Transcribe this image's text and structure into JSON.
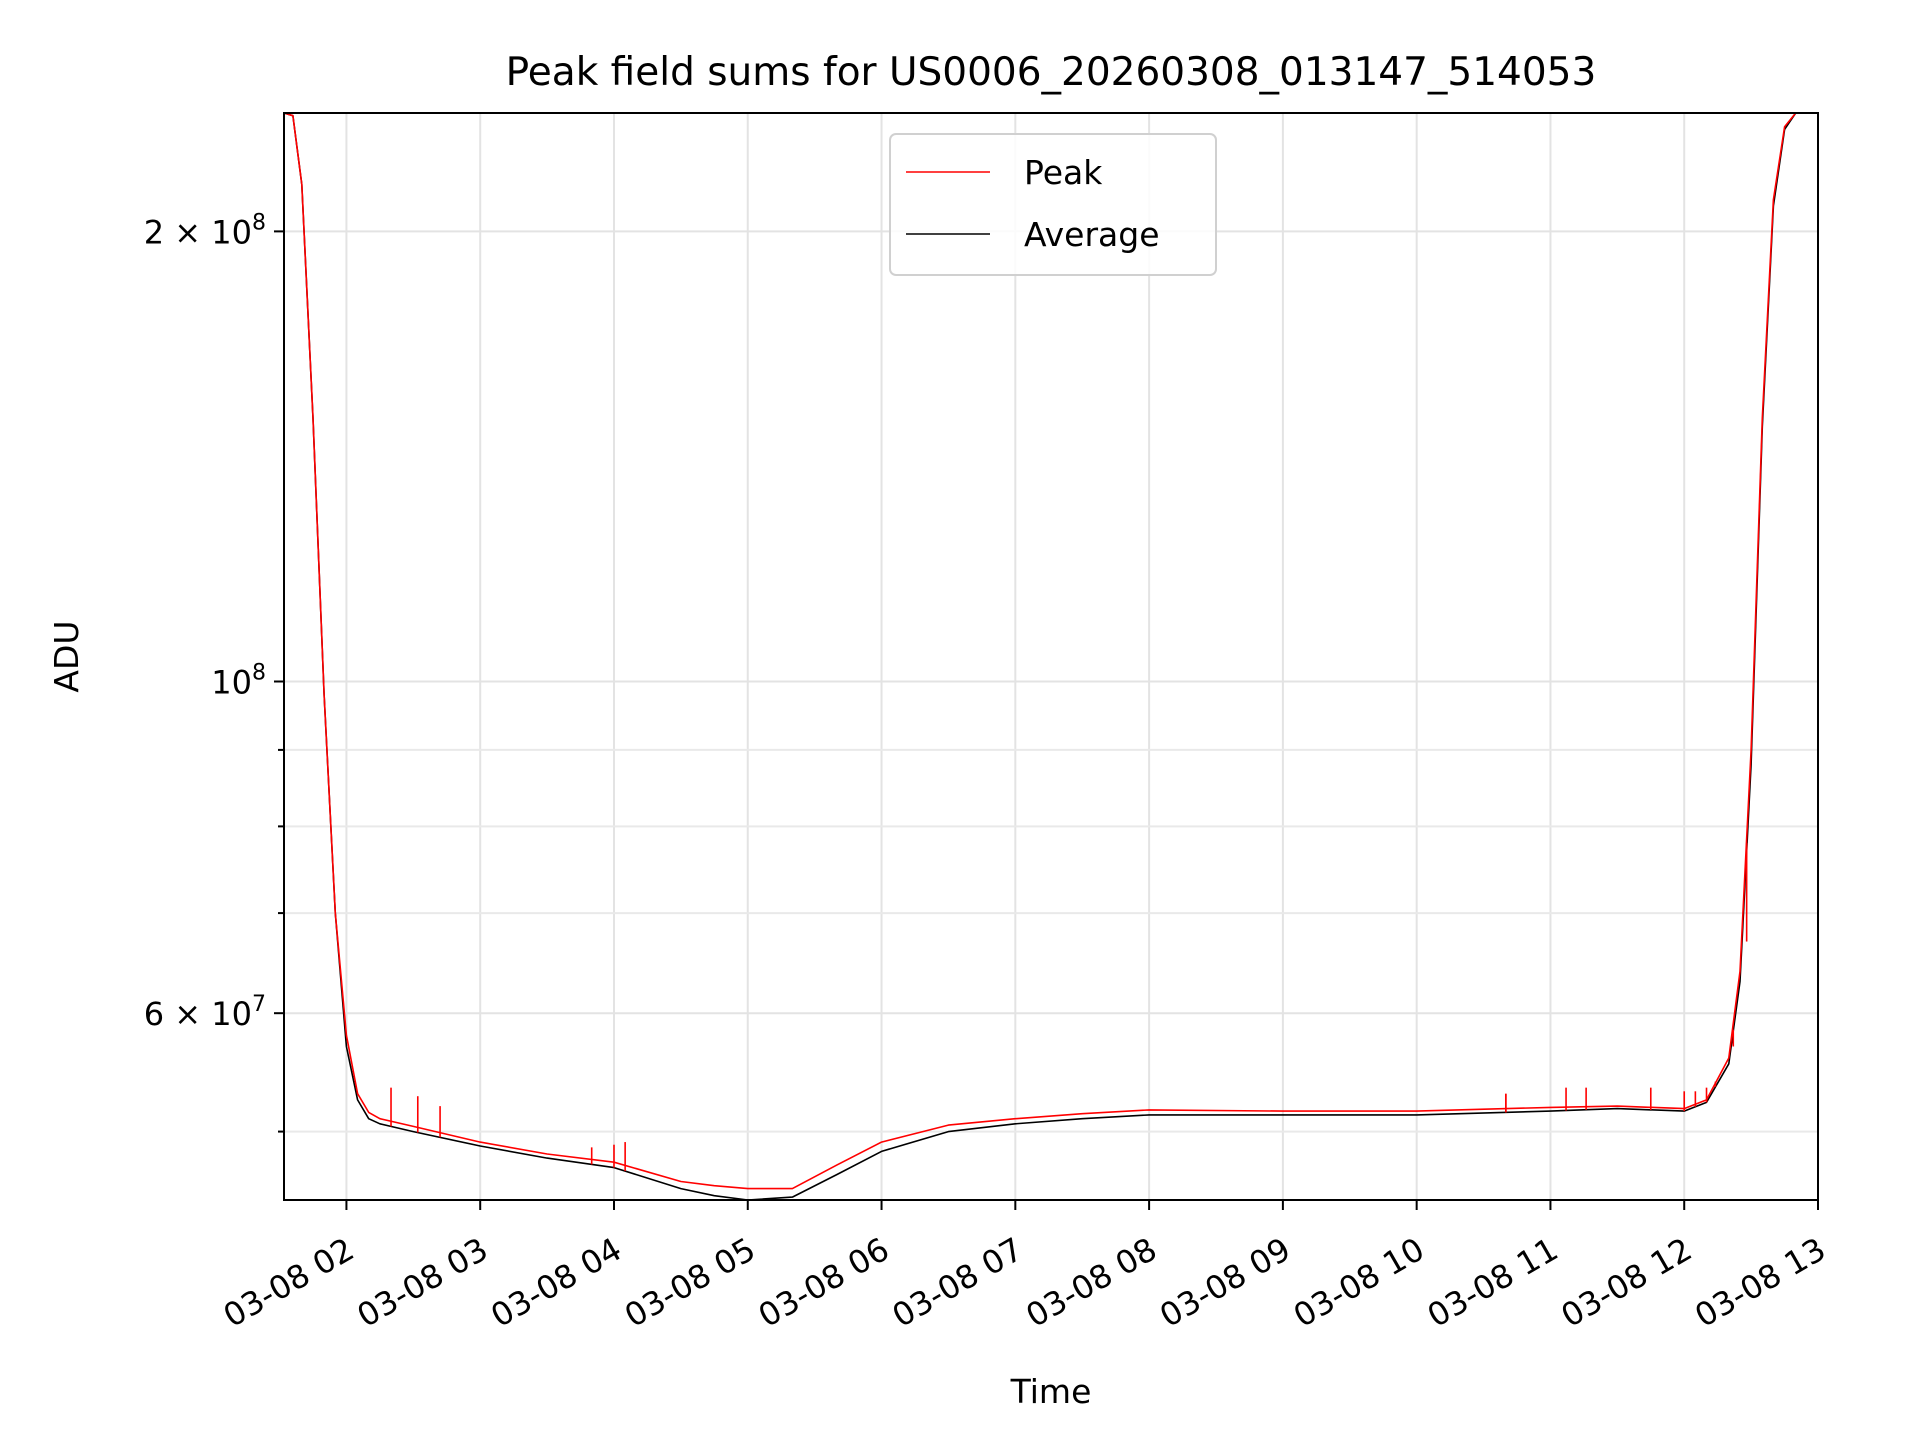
{
  "chart_data": {
    "type": "line",
    "title": "Peak field sums for US0006_20260308_013147_514053",
    "xlabel": "Time",
    "ylabel": "ADU",
    "yscale": "log",
    "ylim": [
      45000000,
      240000000
    ],
    "xlim": [
      "2026-03-08 01:32",
      "2026-03-08 13:00"
    ],
    "x_ticks": [
      "03-08 02",
      "03-08 03",
      "03-08 04",
      "03-08 05",
      "03-08 06",
      "03-08 07",
      "03-08 08",
      "03-08 09",
      "03-08 10",
      "03-08 11",
      "03-08 12",
      "03-08 13"
    ],
    "y_ticks": [
      {
        "value": 200000000,
        "mantissa": "2",
        "exponent": "8"
      },
      {
        "value": 100000000,
        "mantissa": "",
        "exponent": "8"
      },
      {
        "value": 60000000,
        "mantissa": "6",
        "exponent": "7"
      }
    ],
    "y_minor_ticks": [
      50000000,
      70000000,
      80000000,
      90000000
    ],
    "grid": true,
    "legend_position": "top-center",
    "x": [
      "2026-03-08 01:32",
      "2026-03-08 01:36",
      "2026-03-08 01:40",
      "2026-03-08 01:45",
      "2026-03-08 01:50",
      "2026-03-08 01:55",
      "2026-03-08 02:00",
      "2026-03-08 02:05",
      "2026-03-08 02:10",
      "2026-03-08 02:15",
      "2026-03-08 02:30",
      "2026-03-08 03:00",
      "2026-03-08 03:30",
      "2026-03-08 04:00",
      "2026-03-08 04:30",
      "2026-03-08 04:45",
      "2026-03-08 05:00",
      "2026-03-08 05:20",
      "2026-03-08 05:40",
      "2026-03-08 06:00",
      "2026-03-08 06:30",
      "2026-03-08 07:00",
      "2026-03-08 07:30",
      "2026-03-08 08:00",
      "2026-03-08 09:00",
      "2026-03-08 10:00",
      "2026-03-08 11:00",
      "2026-03-08 11:30",
      "2026-03-08 12:00",
      "2026-03-08 12:10",
      "2026-03-08 12:20",
      "2026-03-08 12:25",
      "2026-03-08 12:30",
      "2026-03-08 12:35",
      "2026-03-08 12:40",
      "2026-03-08 12:45",
      "2026-03-08 12:50",
      "2026-03-08 12:55",
      "2026-03-08 13:00"
    ],
    "series": [
      {
        "name": "Peak",
        "color": "#ff0000",
        "values": [
          240000000,
          239000000,
          215000000,
          150000000,
          98000000,
          70000000,
          58000000,
          53000000,
          51500000,
          51000000,
          50400000,
          49200000,
          48300000,
          47700000,
          46300000,
          46000000,
          45800000,
          45800000,
          47500000,
          49200000,
          50500000,
          51000000,
          51400000,
          51700000,
          51600000,
          51600000,
          51900000,
          52000000,
          51800000,
          52500000,
          56000000,
          64000000,
          90000000,
          150000000,
          210000000,
          235000000,
          240000000,
          240000000,
          240000000
        ]
      },
      {
        "name": "Average",
        "color": "#000000",
        "values": [
          240000000,
          239000000,
          215000000,
          150000000,
          98000000,
          70000000,
          57000000,
          52500000,
          51000000,
          50600000,
          50000000,
          48900000,
          48000000,
          47300000,
          45800000,
          45300000,
          45000000,
          45200000,
          46800000,
          48500000,
          50000000,
          50600000,
          51000000,
          51300000,
          51300000,
          51300000,
          51600000,
          51800000,
          51600000,
          52300000,
          55500000,
          63000000,
          88000000,
          148000000,
          208000000,
          234000000,
          240000000,
          240000000,
          240000000
        ]
      }
    ],
    "spikes": [
      {
        "x": "2026-03-08 02:20",
        "y": 53500000
      },
      {
        "x": "2026-03-08 02:32",
        "y": 52800000
      },
      {
        "x": "2026-03-08 02:42",
        "y": 52000000
      },
      {
        "x": "2026-03-08 03:50",
        "y": 48800000
      },
      {
        "x": "2026-03-08 04:00",
        "y": 49000000
      },
      {
        "x": "2026-03-08 04:05",
        "y": 49200000
      },
      {
        "x": "2026-03-08 10:40",
        "y": 53000000
      },
      {
        "x": "2026-03-08 10:40",
        "y": 53000000
      },
      {
        "x": "2026-03-08 11:07",
        "y": 53500000
      },
      {
        "x": "2026-03-08 11:16",
        "y": 53500000
      },
      {
        "x": "2026-03-08 11:45",
        "y": 53500000
      },
      {
        "x": "2026-03-08 12:00",
        "y": 53200000
      },
      {
        "x": "2026-03-08 12:05",
        "y": 53200000
      },
      {
        "x": "2026-03-08 12:10",
        "y": 53500000
      },
      {
        "x": "2026-03-08 12:14",
        "y": 54000000
      },
      {
        "x": "2026-03-08 12:22",
        "y": 57000000
      },
      {
        "x": "2026-03-08 12:28",
        "y": 67000000
      }
    ]
  }
}
